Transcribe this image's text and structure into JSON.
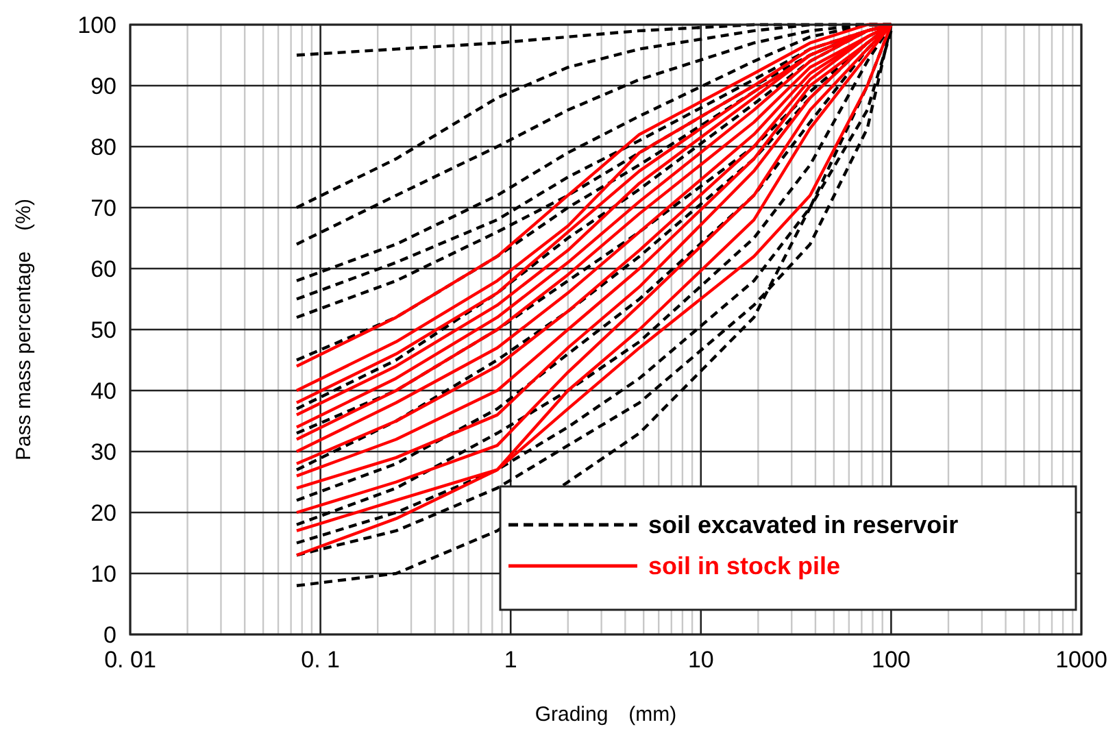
{
  "chart_data": {
    "type": "line",
    "xlabel": "Grading　(mm)",
    "ylabel": "Pass mass percentage　(%)",
    "log": "x",
    "grid": true,
    "legend": "bottom right",
    "xlim": [
      0.01,
      1000
    ],
    "ylim": [
      0,
      100
    ],
    "xticks": [
      {
        "value": 0.01,
        "label": "0. 01"
      },
      {
        "value": 0.1,
        "label": "0. 1"
      },
      1,
      10,
      100,
      1000
    ],
    "yticks": [
      0,
      10,
      20,
      30,
      40,
      50,
      60,
      70,
      80,
      90,
      100
    ],
    "x": [
      0.075,
      0.25,
      0.85,
      2,
      4.75,
      19,
      37.5,
      75,
      100
    ],
    "series": [
      {
        "name": "soil excavated in reservoir",
        "color": "#000000",
        "line_style": "dashed",
        "values": [
          95,
          96,
          97,
          98,
          99,
          100,
          100,
          100,
          100
        ]
      },
      {
        "color": "#000000",
        "line_style": "dashed",
        "values": [
          70,
          78,
          88,
          93,
          96,
          99,
          100,
          100,
          100
        ]
      },
      {
        "color": "#000000",
        "line_style": "dashed",
        "values": [
          64,
          72,
          80,
          86,
          91,
          97,
          99,
          100,
          100
        ]
      },
      {
        "color": "#000000",
        "line_style": "dashed",
        "values": [
          58,
          64,
          72,
          79,
          85,
          94,
          98,
          100,
          100
        ]
      },
      {
        "color": "#000000",
        "line_style": "dashed",
        "values": [
          55,
          61,
          68,
          75,
          81,
          91,
          96,
          99,
          100
        ]
      },
      {
        "color": "#000000",
        "line_style": "dashed",
        "values": [
          52,
          58,
          66,
          72,
          79,
          90,
          95,
          99,
          100
        ]
      },
      {
        "color": "#000000",
        "line_style": "dashed",
        "values": [
          45,
          52,
          62,
          70,
          77,
          89,
          95,
          99,
          100
        ]
      },
      {
        "color": "#000000",
        "line_style": "dashed",
        "values": [
          37,
          45,
          56,
          65,
          73,
          87,
          94,
          99,
          100
        ]
      },
      {
        "color": "#000000",
        "line_style": "dashed",
        "values": [
          33,
          40,
          50,
          58,
          66,
          80,
          89,
          97,
          100
        ]
      },
      {
        "color": "#000000",
        "line_style": "dashed",
        "values": [
          27,
          35,
          45,
          53,
          62,
          78,
          88,
          97,
          100
        ]
      },
      {
        "color": "#000000",
        "line_style": "dashed",
        "values": [
          22,
          28,
          37,
          46,
          55,
          72,
          84,
          96,
          100
        ]
      },
      {
        "color": "#000000",
        "line_style": "dashed",
        "values": [
          18,
          24,
          33,
          40,
          48,
          65,
          77,
          94,
          100
        ]
      },
      {
        "color": "#000000",
        "line_style": "dashed",
        "values": [
          15,
          20,
          27,
          34,
          42,
          58,
          70,
          90,
          100
        ]
      },
      {
        "color": "#000000",
        "line_style": "dashed",
        "values": [
          13,
          17,
          24,
          31,
          38,
          54,
          64,
          83,
          100
        ]
      },
      {
        "color": "#000000",
        "line_style": "dashed",
        "values": [
          8,
          10,
          17,
          25,
          33,
          52,
          70,
          86,
          99
        ]
      },
      {
        "name": "soil in stock pile",
        "color": "#ff0000",
        "line_style": "solid",
        "values": [
          44,
          52,
          62,
          72,
          82,
          92,
          97,
          100,
          100
        ]
      },
      {
        "color": "#ff0000",
        "line_style": "solid",
        "values": [
          40,
          48,
          58,
          67,
          79,
          90,
          96,
          99,
          100
        ]
      },
      {
        "color": "#ff0000",
        "line_style": "solid",
        "values": [
          38,
          46,
          56,
          66,
          76,
          89,
          95,
          99,
          100
        ]
      },
      {
        "color": "#ff0000",
        "line_style": "solid",
        "values": [
          36,
          44,
          54,
          63,
          74,
          88,
          95,
          99,
          100
        ]
      },
      {
        "color": "#ff0000",
        "line_style": "solid",
        "values": [
          34,
          42,
          52,
          61,
          71,
          86,
          94,
          99,
          100
        ]
      },
      {
        "color": "#ff0000",
        "line_style": "solid",
        "values": [
          32,
          40,
          50,
          59,
          69,
          84,
          93,
          98,
          100
        ]
      },
      {
        "color": "#ff0000",
        "line_style": "solid",
        "values": [
          30,
          38,
          47,
          56,
          66,
          82,
          92,
          98,
          100
        ]
      },
      {
        "color": "#ff0000",
        "line_style": "solid",
        "values": [
          28,
          35,
          44,
          53,
          63,
          80,
          91,
          98,
          100
        ]
      },
      {
        "color": "#ff0000",
        "line_style": "solid",
        "values": [
          26,
          32,
          40,
          50,
          60,
          78,
          90,
          97,
          100
        ]
      },
      {
        "color": "#ff0000",
        "line_style": "solid",
        "values": [
          24,
          29,
          36,
          47,
          57,
          76,
          88,
          97,
          100
        ]
      },
      {
        "color": "#ff0000",
        "line_style": "solid",
        "values": [
          20,
          25,
          31,
          43,
          54,
          72,
          86,
          96,
          100
        ]
      },
      {
        "color": "#ff0000",
        "line_style": "solid",
        "values": [
          17,
          22,
          27,
          40,
          50,
          68,
          83,
          95,
          100
        ]
      },
      {
        "color": "#ff0000",
        "line_style": "solid",
        "values": [
          13,
          19,
          27,
          37,
          47,
          62,
          72,
          90,
          100
        ]
      }
    ]
  }
}
